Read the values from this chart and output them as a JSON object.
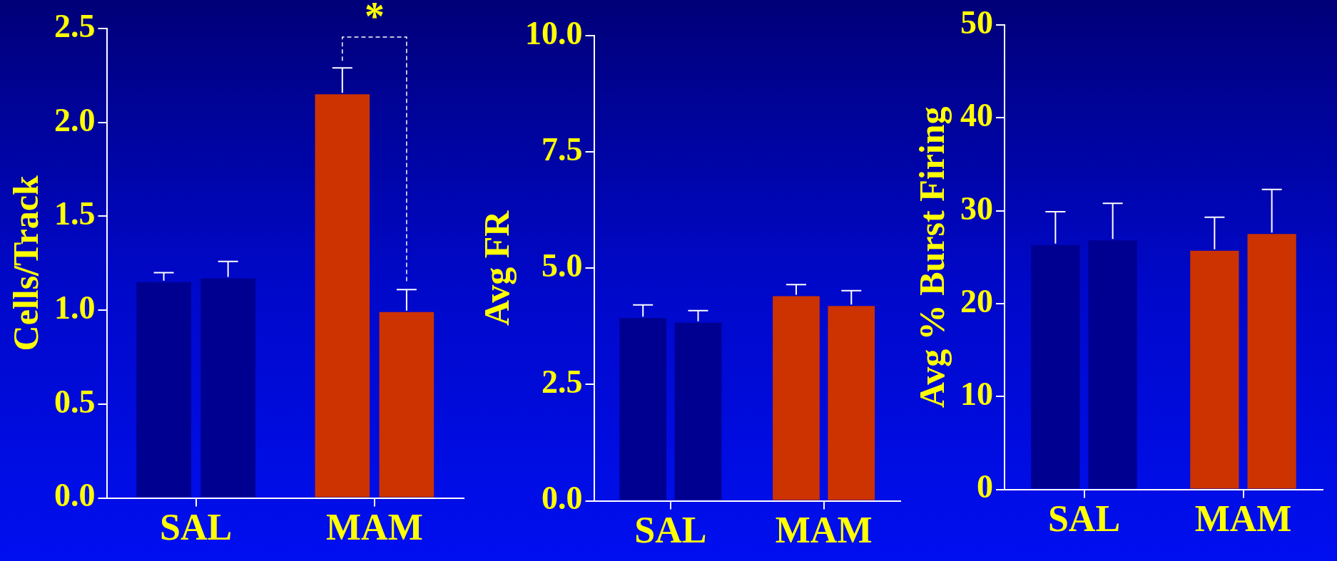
{
  "chart_data": [
    {
      "type": "bar",
      "ylabel": "Cells/Track",
      "categories": [
        "SAL",
        "MAM"
      ],
      "ylim": [
        0,
        2.5
      ],
      "yticks": [
        {
          "value": 0,
          "label": "0.0"
        },
        {
          "value": 0.5,
          "label": "0.5"
        },
        {
          "value": 1,
          "label": "1.0"
        },
        {
          "value": 1.5,
          "label": "1.5"
        },
        {
          "value": 2,
          "label": "2.0"
        },
        {
          "value": 2.5,
          "label": "2.5"
        }
      ],
      "annotations": [
        "*"
      ],
      "series": [
        {
          "colors": [
            "#000090",
            "#cc3300"
          ],
          "values": [
            1.15,
            2.15
          ],
          "errors": [
            0.05,
            0.14
          ]
        },
        {
          "colors": [
            "#000090",
            "#cc3300"
          ],
          "values": [
            1.17,
            0.99
          ],
          "errors": [
            0.09,
            0.12
          ]
        }
      ]
    },
    {
      "type": "bar",
      "ylabel": "Avg FR",
      "categories": [
        "SAL",
        "MAM"
      ],
      "ylim": [
        0,
        10
      ],
      "yticks": [
        {
          "value": 0,
          "label": "0.0"
        },
        {
          "value": 2.5,
          "label": "2.5"
        },
        {
          "value": 5,
          "label": "5.0"
        },
        {
          "value": 7.5,
          "label": "7.5"
        },
        {
          "value": 10,
          "label": "10.0"
        }
      ],
      "series": [
        {
          "colors": [
            "#000090",
            "#cc3300"
          ],
          "values": [
            3.93,
            4.4
          ],
          "errors": [
            0.28,
            0.25
          ]
        },
        {
          "colors": [
            "#000090",
            "#cc3300"
          ],
          "values": [
            3.83,
            4.19
          ],
          "errors": [
            0.26,
            0.33
          ]
        }
      ]
    },
    {
      "type": "bar",
      "ylabel": "Avg % Burst Firing",
      "categories": [
        "SAL",
        "MAM"
      ],
      "ylim": [
        0,
        50
      ],
      "yticks": [
        0,
        10,
        20,
        30,
        40,
        50
      ],
      "series": [
        {
          "colors": [
            "#000090",
            "#cc3300"
          ],
          "values": [
            26.3,
            25.7
          ],
          "errors": [
            3.6,
            3.6
          ]
        },
        {
          "colors": [
            "#000090",
            "#cc3300"
          ],
          "values": [
            26.8,
            27.5
          ],
          "errors": [
            4.0,
            4.8
          ]
        }
      ]
    }
  ]
}
